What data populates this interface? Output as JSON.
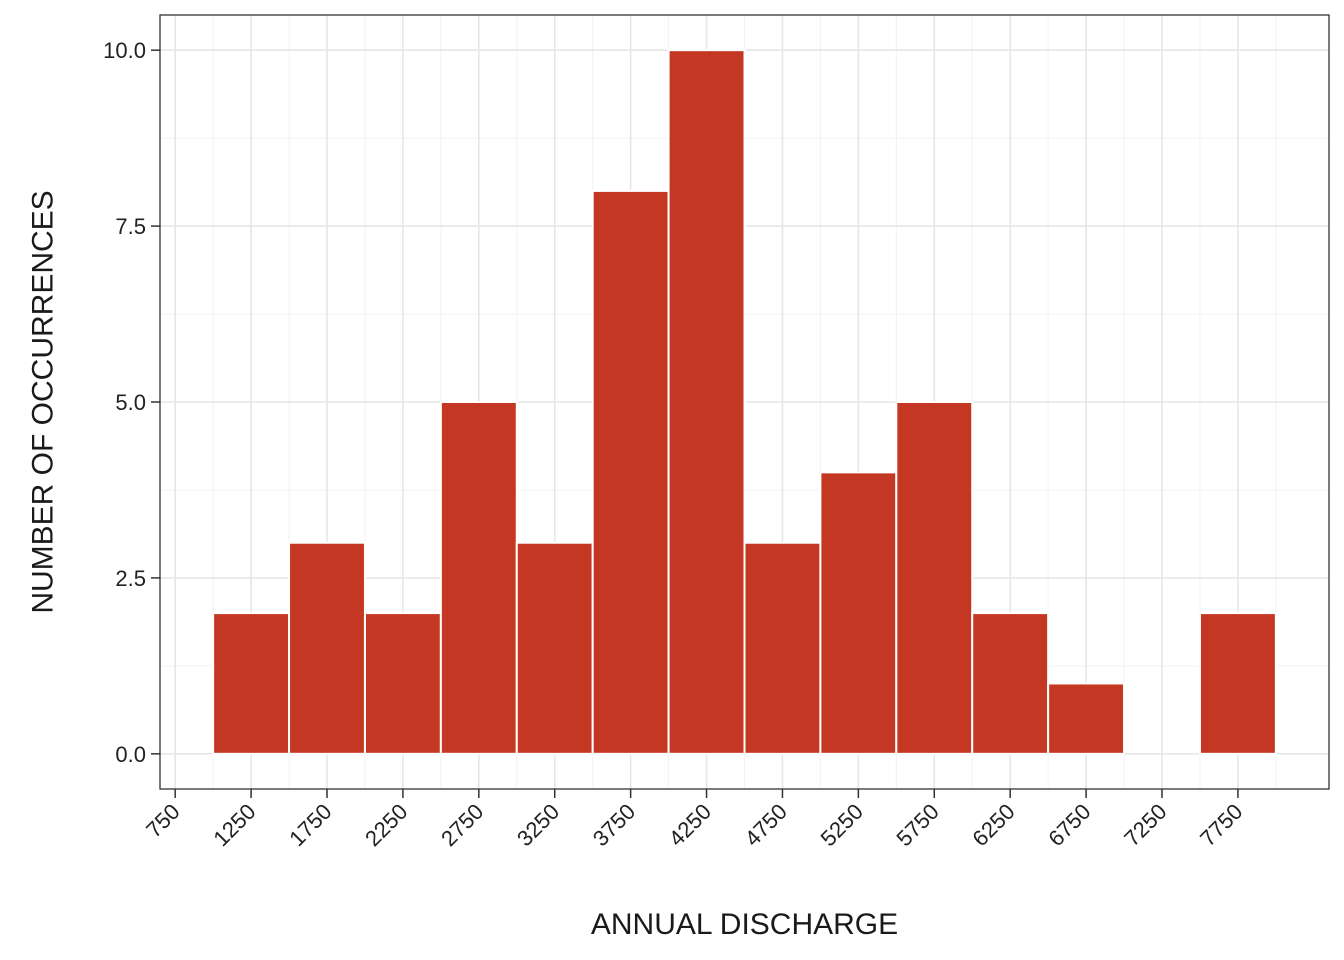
{
  "chart_data": {
    "type": "bar",
    "subtype": "histogram",
    "title": "",
    "xlabel": "ANNUAL DISCHARGE",
    "ylabel": "NUMBER OF OCCURRENCES",
    "bin_width": 500,
    "bins": [
      {
        "start": 1000,
        "end": 1500,
        "count": 2
      },
      {
        "start": 1500,
        "end": 2000,
        "count": 3
      },
      {
        "start": 2000,
        "end": 2500,
        "count": 2
      },
      {
        "start": 2500,
        "end": 3000,
        "count": 5
      },
      {
        "start": 3000,
        "end": 3500,
        "count": 3
      },
      {
        "start": 3500,
        "end": 4000,
        "count": 8
      },
      {
        "start": 4000,
        "end": 4500,
        "count": 10
      },
      {
        "start": 4500,
        "end": 5000,
        "count": 3
      },
      {
        "start": 5000,
        "end": 5500,
        "count": 4
      },
      {
        "start": 5500,
        "end": 6000,
        "count": 5
      },
      {
        "start": 6000,
        "end": 6500,
        "count": 2
      },
      {
        "start": 6500,
        "end": 7000,
        "count": 1
      },
      {
        "start": 7000,
        "end": 7500,
        "count": 0
      },
      {
        "start": 7500,
        "end": 8000,
        "count": 2
      }
    ],
    "x_ticks": [
      750,
      1250,
      1750,
      2250,
      2750,
      3250,
      3750,
      4250,
      4750,
      5250,
      5750,
      6250,
      6750,
      7250,
      7750
    ],
    "x_tick_labels": [
      "750",
      "1250",
      "1750",
      "2250",
      "2750",
      "3250",
      "3750",
      "4250",
      "4750",
      "5250",
      "5750",
      "6250",
      "6750",
      "7250",
      "7750"
    ],
    "y_ticks": [
      0,
      2.5,
      5,
      7.5,
      10
    ],
    "y_tick_labels": [
      "0.0",
      "2.5",
      "5.0",
      "7.5",
      "10.0"
    ],
    "xlim": [
      650,
      8350
    ],
    "ylim": [
      -0.5,
      10.5
    ],
    "grid": true,
    "legend": "none",
    "colors": {
      "bar_fill": "#C43722",
      "bar_edge": "#ffffff",
      "grid_major": "#e6e6e6",
      "grid_minor": "#f2f2f2",
      "frame": "#333333"
    }
  }
}
